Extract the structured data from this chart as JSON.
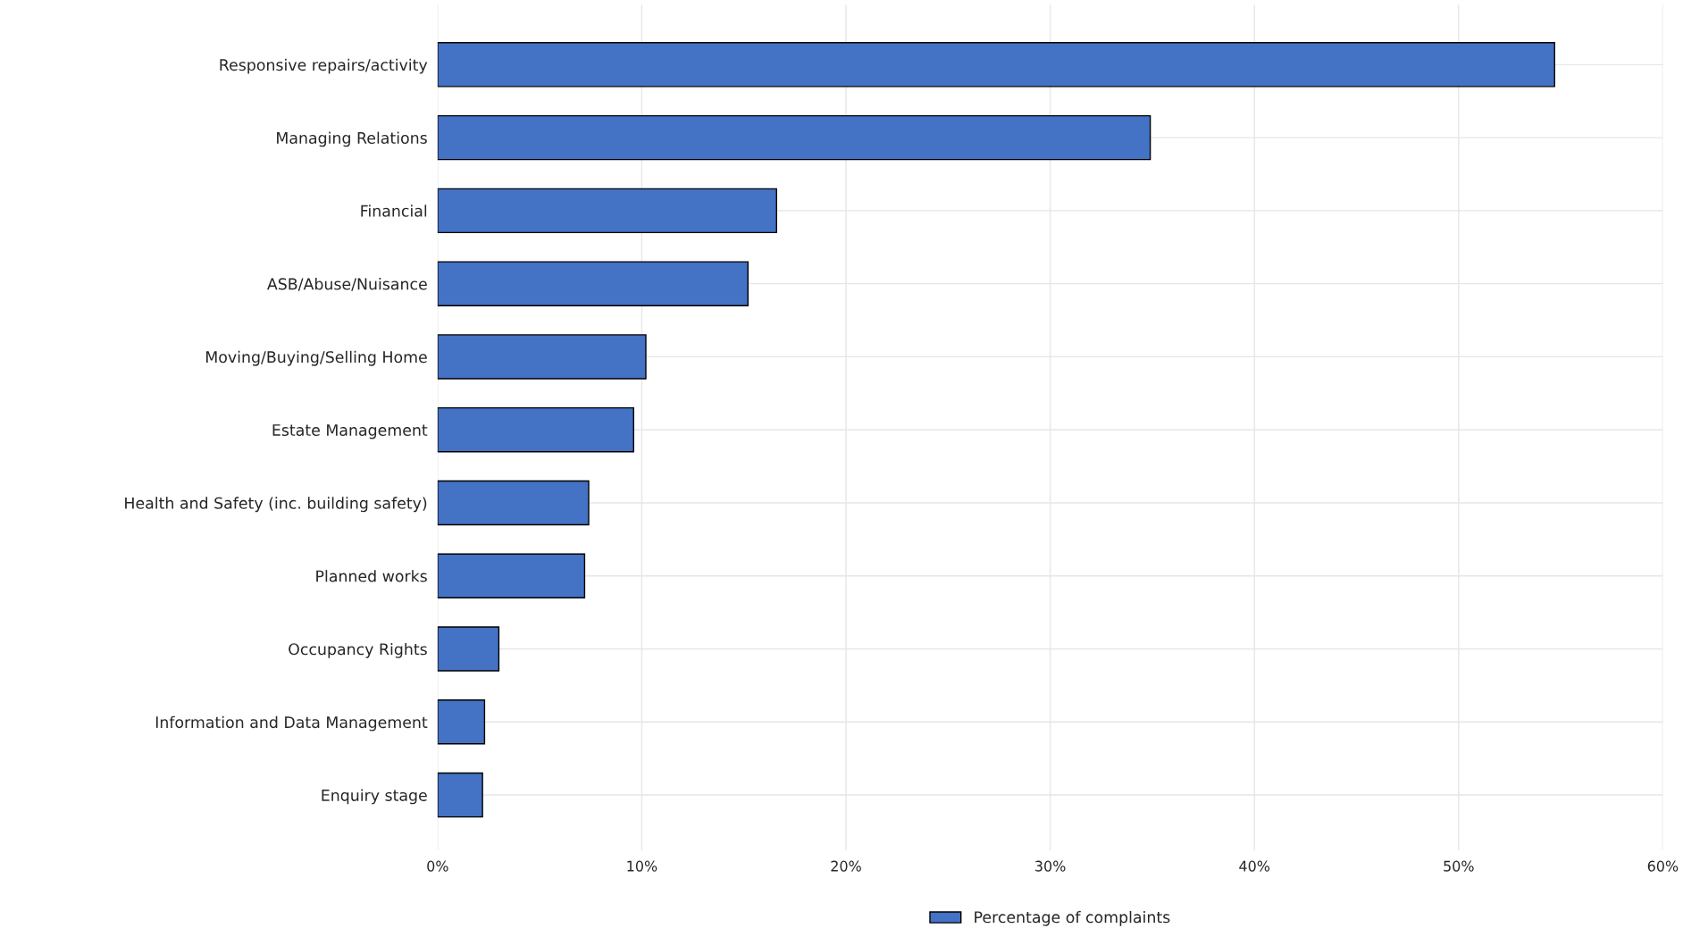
{
  "chart_data": {
    "type": "bar",
    "orientation": "horizontal",
    "categories": [
      "Responsive repairs/activity",
      "Managing Relations",
      "Financial",
      "ASB/Abuse/Nuisance",
      "Moving/Buying/Selling Home",
      "Estate Management",
      "Health and Safety (inc. building safety)",
      "Planned works",
      "Occupancy Rights",
      "Information and Data Management",
      "Enquiry stage"
    ],
    "series": [
      {
        "name": "Percentage of complaints",
        "color": "#4472c4",
        "values": [
          54.7,
          34.9,
          16.6,
          15.2,
          10.2,
          9.6,
          7.4,
          7.2,
          3.0,
          2.3,
          2.2
        ]
      }
    ],
    "xlim": [
      0,
      60
    ],
    "xticks": [
      {
        "value": 0,
        "label": "0%"
      },
      {
        "value": 10,
        "label": "10%"
      },
      {
        "value": 20,
        "label": "20%"
      },
      {
        "value": 30,
        "label": "30%"
      },
      {
        "value": 40,
        "label": "40%"
      },
      {
        "value": 50,
        "label": "50%"
      },
      {
        "value": 60,
        "label": "60%"
      }
    ],
    "grid": true,
    "legend": "bottom"
  }
}
